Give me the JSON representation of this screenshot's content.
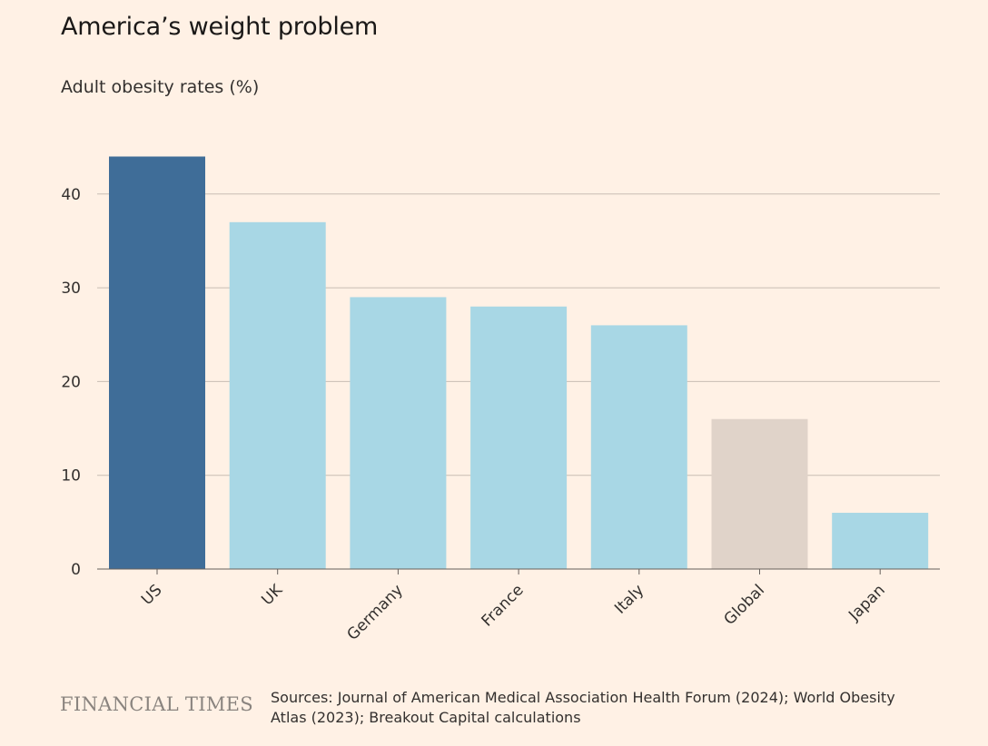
{
  "header": {
    "title": "America’s weight problem",
    "subtitle": "Adult obesity rates (%)"
  },
  "footer": {
    "brand": "FINANCIAL TIMES",
    "sources": "Sources: Journal of American Medical Association Health Forum (2024); World Obesity Atlas (2023); Breakout Capital calculations"
  },
  "chart_data": {
    "type": "bar",
    "title": "America’s weight problem",
    "subtitle": "Adult obesity rates (%)",
    "categories": [
      "US",
      "UK",
      "Germany",
      "France",
      "Italy",
      "Global",
      "Japan"
    ],
    "values": [
      44,
      37,
      29,
      28,
      26,
      16,
      6
    ],
    "colors": [
      "#3f6d98",
      "#a8d7e5",
      "#a8d7e5",
      "#a8d7e5",
      "#a8d7e5",
      "#e0d3c9",
      "#a8d7e5"
    ],
    "ylim": [
      0,
      44
    ],
    "yticks": [
      0,
      10,
      20,
      30,
      40
    ],
    "grid": true,
    "gridColor": "#c8bdb3",
    "axisColor": "#66605c"
  }
}
